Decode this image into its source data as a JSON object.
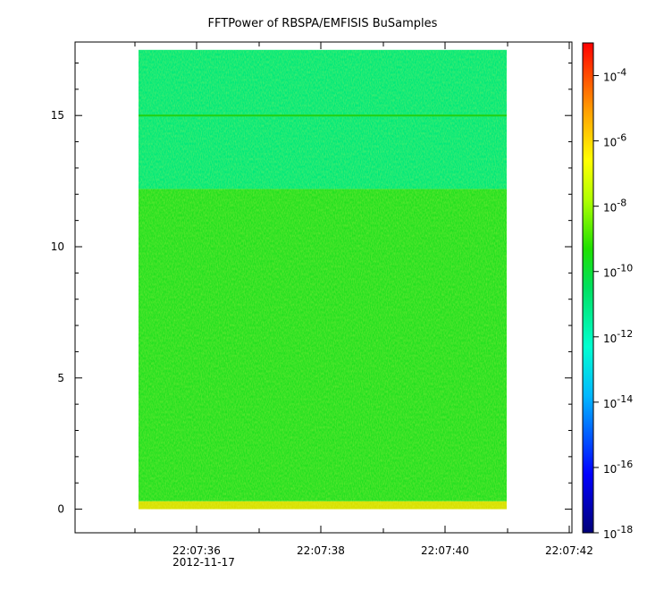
{
  "chart_data": {
    "type": "heatmap",
    "title": "FFTPower of RBSPA/EMFISIS  BuSamples",
    "xlabel": "",
    "ylabel": "",
    "x_ticks": [
      "22:07:36",
      "22:07:38",
      "22:07:40",
      "22:07:42"
    ],
    "x_date_label": "2012-11-17",
    "y_ticks": [
      0,
      5,
      10,
      15
    ],
    "ylim": [
      -0.9,
      17.8
    ],
    "x_range_seconds": [
      "22:07:35",
      "22:07:41"
    ],
    "y_data_range": [
      0,
      17.5
    ],
    "colorbar": {
      "scale": "log",
      "range": [
        1e-18,
        0.001
      ],
      "ticks": [
        {
          "base": "10",
          "exp": "-4"
        },
        {
          "base": "10",
          "exp": "-6"
        },
        {
          "base": "10",
          "exp": "-8"
        },
        {
          "base": "10",
          "exp": "-10"
        },
        {
          "base": "10",
          "exp": "-12"
        },
        {
          "base": "10",
          "exp": "-14"
        },
        {
          "base": "10",
          "exp": "-16"
        },
        {
          "base": "10",
          "exp": "-18"
        }
      ],
      "tick_exponents": [
        -4,
        -6,
        -8,
        -10,
        -12,
        -14,
        -16,
        -18
      ]
    },
    "bands": [
      {
        "y_from": 12.2,
        "y_to": 17.5,
        "color": "#00e87a"
      },
      {
        "y_from": 0.3,
        "y_to": 12.2,
        "color": "#22e020"
      },
      {
        "y_from": 0,
        "y_to": 0.3,
        "color": "#d8e000"
      }
    ],
    "line_at": 15.0,
    "grid": false
  }
}
